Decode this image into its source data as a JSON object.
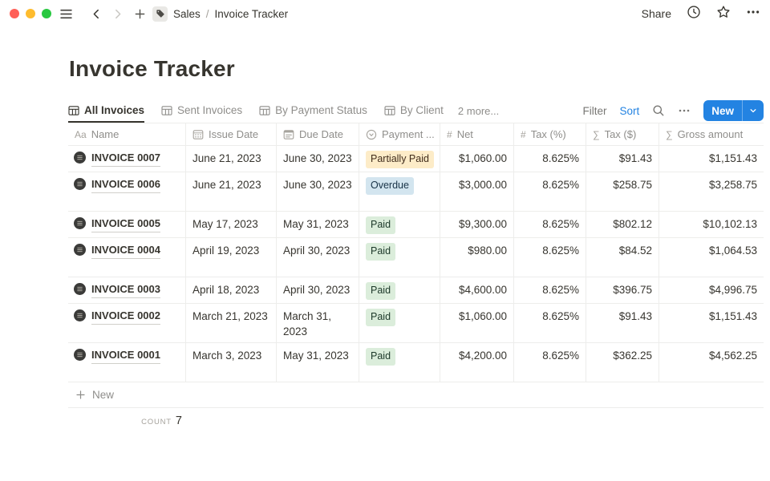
{
  "topbar": {
    "breadcrumb": {
      "workspace": "Sales",
      "separator": "/",
      "page": "Invoice Tracker"
    },
    "share_label": "Share"
  },
  "page": {
    "title": "Invoice Tracker"
  },
  "view_bar": {
    "tabs": [
      {
        "label": "All Invoices",
        "active": true
      },
      {
        "label": "Sent Invoices",
        "active": false
      },
      {
        "label": "By Payment Status",
        "active": false
      },
      {
        "label": "By Client",
        "active": false
      }
    ],
    "more_label": "2 more...",
    "filter_label": "Filter",
    "sort_label": "Sort",
    "new_button_label": "New"
  },
  "table": {
    "columns": [
      {
        "id": "name",
        "label": "Name",
        "icon": "text-icon"
      },
      {
        "id": "issue_date",
        "label": "Issue Date",
        "icon": "calendar-icon"
      },
      {
        "id": "due_date",
        "label": "Due Date",
        "icon": "date-icon"
      },
      {
        "id": "status",
        "label": "Payment ...",
        "icon": "select-icon"
      },
      {
        "id": "net",
        "label": "Net",
        "icon": "hash-icon"
      },
      {
        "id": "tax_pct",
        "label": "Tax (%)",
        "icon": "hash-icon"
      },
      {
        "id": "tax_usd",
        "label": "Tax ($)",
        "icon": "sigma-icon"
      },
      {
        "id": "gross",
        "label": "Gross amount",
        "icon": "sigma-icon"
      }
    ],
    "rows": [
      {
        "name": "INVOICE 0007",
        "issue_date": "June 21, 2023",
        "due_date": "June 30, 2023",
        "status": "Partially Paid",
        "status_tone": "yellow",
        "tall": false,
        "net": "$1,060.00",
        "tax_pct": "8.625%",
        "tax_usd": "$91.43",
        "gross": "$1,151.43"
      },
      {
        "name": "INVOICE 0006",
        "issue_date": "June 21, 2023",
        "due_date": "June 30, 2023",
        "status": "Overdue",
        "status_tone": "blue",
        "tall": true,
        "net": "$3,000.00",
        "tax_pct": "8.625%",
        "tax_usd": "$258.75",
        "gross": "$3,258.75"
      },
      {
        "name": "INVOICE 0005",
        "issue_date": "May 17, 2023",
        "due_date": "May 31, 2023",
        "status": "Paid",
        "status_tone": "green",
        "tall": false,
        "net": "$9,300.00",
        "tax_pct": "8.625%",
        "tax_usd": "$802.12",
        "gross": "$10,102.13"
      },
      {
        "name": "INVOICE 0004",
        "issue_date": "April 19, 2023",
        "due_date": "April 30, 2023",
        "status": "Paid",
        "status_tone": "green",
        "tall": true,
        "net": "$980.00",
        "tax_pct": "8.625%",
        "tax_usd": "$84.52",
        "gross": "$1,064.53"
      },
      {
        "name": "INVOICE 0003",
        "issue_date": "April 18, 2023",
        "due_date": "April 30, 2023",
        "status": "Paid",
        "status_tone": "green",
        "tall": false,
        "net": "$4,600.00",
        "tax_pct": "8.625%",
        "tax_usd": "$396.75",
        "gross": "$4,996.75"
      },
      {
        "name": "INVOICE 0002",
        "issue_date": "March 21, 2023",
        "due_date": "March 31, 2023",
        "status": "Paid",
        "status_tone": "green",
        "tall": true,
        "net": "$1,060.00",
        "tax_pct": "8.625%",
        "tax_usd": "$91.43",
        "gross": "$1,151.43"
      },
      {
        "name": "INVOICE 0001",
        "issue_date": "March 3, 2023",
        "due_date": "May 31, 2023",
        "status": "Paid",
        "status_tone": "green",
        "tall": true,
        "net": "$4,200.00",
        "tax_pct": "8.625%",
        "tax_usd": "$362.25",
        "gross": "$4,562.25"
      }
    ],
    "new_row_label": "New",
    "footer": {
      "count_label": "COUNT",
      "count_value": "7"
    }
  },
  "colors": {
    "accent_blue": "#2383e2",
    "badge_yellow_bg": "#fdecc8",
    "badge_blue_bg": "#d3e5ef",
    "badge_green_bg": "#dbeddb",
    "traffic_red": "#ff5f57",
    "traffic_yellow": "#febc2e",
    "traffic_green": "#28c840"
  }
}
